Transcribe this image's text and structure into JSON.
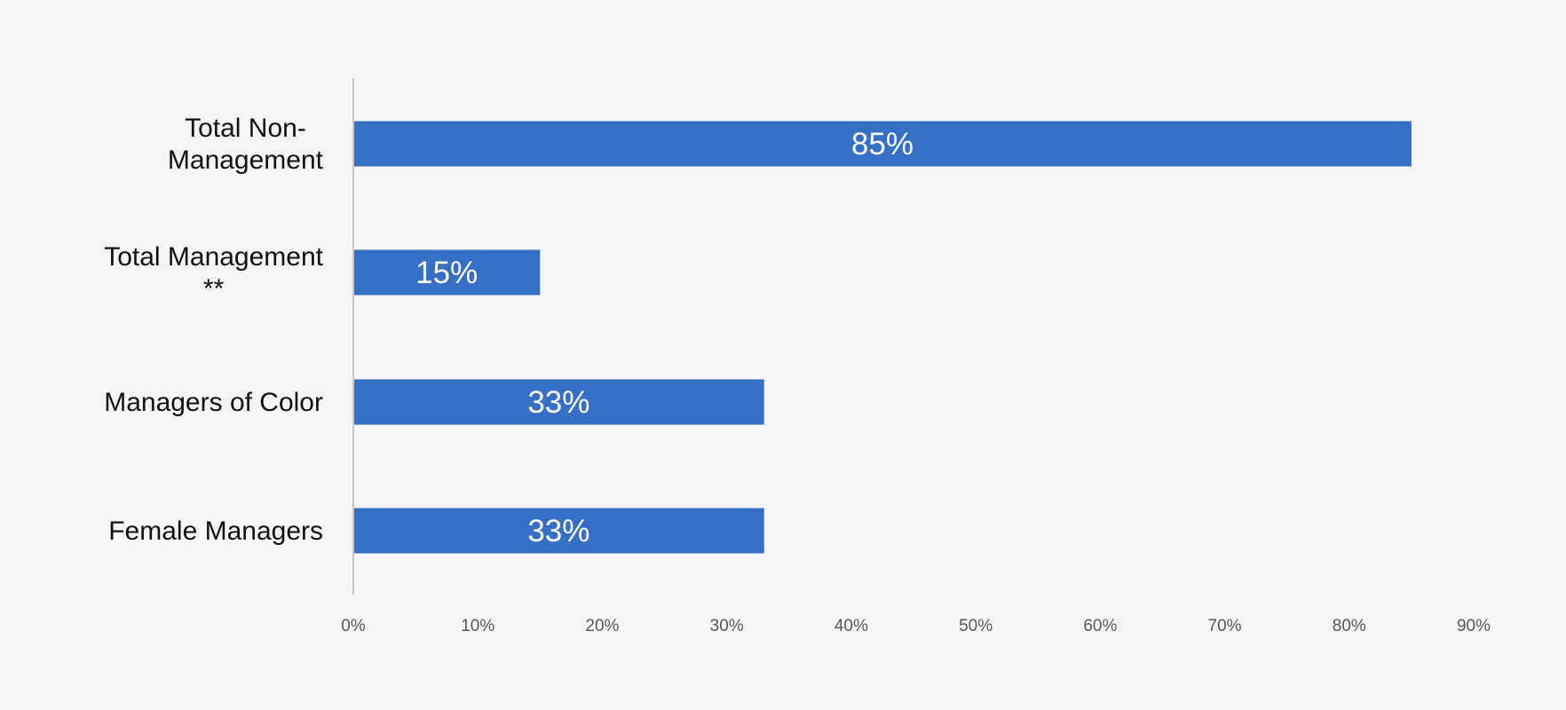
{
  "chart_data": {
    "type": "bar",
    "orientation": "horizontal",
    "categories": [
      [
        "Total Non-",
        "Management"
      ],
      [
        "Total Management",
        "**"
      ],
      [
        "Managers of Color"
      ],
      [
        "Female Managers"
      ]
    ],
    "values": [
      85,
      15,
      33,
      33
    ],
    "data_labels": [
      "85%",
      "15%",
      "33%",
      "33%"
    ],
    "xlim": [
      0,
      90
    ],
    "x_ticks": [
      0,
      10,
      20,
      30,
      40,
      50,
      60,
      70,
      80,
      90
    ],
    "x_tick_labels": [
      "0%",
      "10%",
      "20%",
      "30%",
      "40%",
      "50%",
      "60%",
      "70%",
      "80%",
      "90%"
    ],
    "grid": false,
    "bar_color": "#3670c6",
    "background_color": "#f5f5f5",
    "axis_color": "#c8c8c8"
  }
}
